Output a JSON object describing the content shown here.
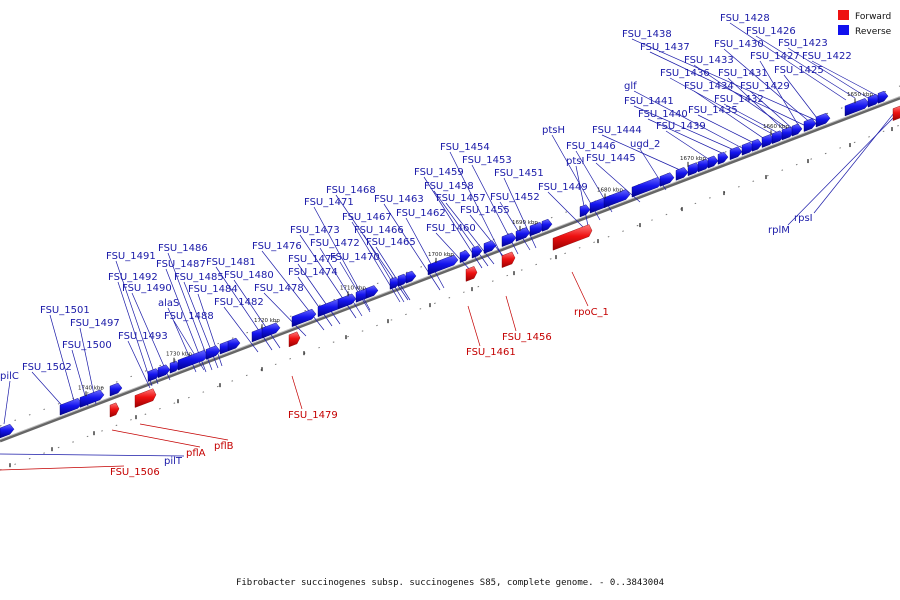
{
  "legend": [
    {
      "label": "Forward",
      "color": "#ee1111"
    },
    {
      "label": "Reverse",
      "color": "#1111ee"
    }
  ],
  "caption": "Fibrobacter succinogenes subsp. succinogenes S85, complete genome. - 0..3843004",
  "ticks": [
    "1650 kbp",
    "1660 kbp",
    "1670 kbp",
    "1680 kbp",
    "1690 kbp",
    "1700 kbp",
    "1710 kbp",
    "1720 kbp",
    "1730 kbp",
    "1740 kbp"
  ],
  "reverse_labels": [
    "FSU_1428",
    "FSU_1426",
    "FSU_1438",
    "FSU_1430",
    "FSU_1423",
    "FSU_1437",
    "FSU_1427",
    "FSU_1422",
    "FSU_1433",
    "FSU_1431",
    "FSU_1425",
    "FSU_1436",
    "FSU_1434",
    "FSU_1429",
    "glf",
    "FSU_1441",
    "FSU_1432",
    "FSU_1440",
    "FSU_1435",
    "FSU_1444",
    "FSU_1439",
    "ptsH",
    "FSU_1446",
    "ugd_2",
    "ptsI",
    "FSU_1445",
    "FSU_1454",
    "FSU_1453",
    "FSU_1451",
    "FSU_1459",
    "FSU_1449",
    "FSU_1468",
    "FSU_1458",
    "FSU_1452",
    "FSU_1457",
    "FSU_1471",
    "FSU_1463",
    "FSU_1455",
    "FSU_1467",
    "FSU_1462",
    "FSU_1460",
    "FSU_1473",
    "FSU_1466",
    "FSU_1486",
    "FSU_1476",
    "FSU_1472",
    "FSU_1465",
    "FSU_1491",
    "FSU_1470",
    "FSU_1487",
    "FSU_1481",
    "FSU_1475",
    "FSU_1492",
    "FSU_1485",
    "FSU_1480",
    "FSU_1474",
    "FSU_1490",
    "FSU_1484",
    "FSU_1478",
    "alaS",
    "FSU_1482",
    "FSU_1501",
    "FSU_1488",
    "FSU_1497",
    "FSU_1493",
    "FSU_1500",
    "FSU_1502",
    "pilC",
    "rplM",
    "rpsI",
    "pilT"
  ],
  "forward_labels": [
    "rpoC_1",
    "FSU_1456",
    "FSU_1461",
    "FSU_1479",
    "pflB",
    "pflA",
    "FSU_1506"
  ]
}
